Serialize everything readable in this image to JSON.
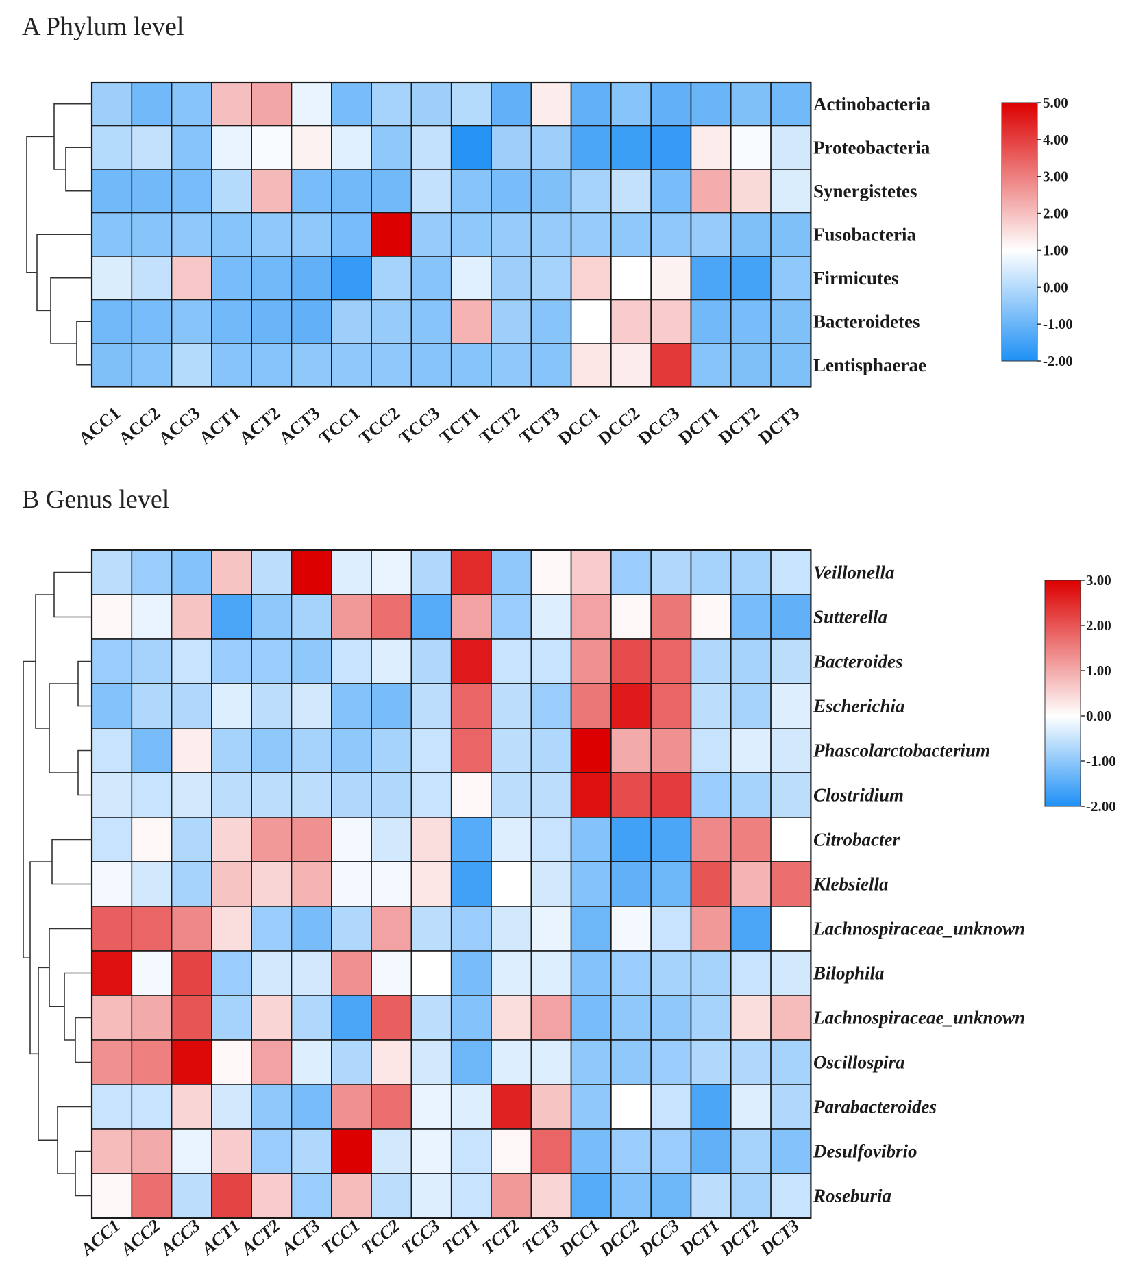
{
  "colors": {
    "low": "#1e90f5",
    "mid": "#ffffff",
    "high": "#dc0000",
    "grid": "#1a1a1a",
    "dendro": "#333333"
  },
  "chart_data": [
    {
      "type": "heatmap",
      "title": "A Phylum level",
      "columns": [
        "ACC1",
        "ACC2",
        "ACC3",
        "ACT1",
        "ACT2",
        "ACT3",
        "TCC1",
        "TCC2",
        "TCC3",
        "TCT1",
        "TCT2",
        "TCT3",
        "DCC1",
        "DCC2",
        "DCC3",
        "DCT1",
        "DCT2",
        "DCT3"
      ],
      "rows": [
        "Actinobacteria",
        "Proteobacteria",
        "Synergistetes",
        "Fusobacteria",
        "Firmicutes",
        "Bacteroidetes",
        "Lentisphaerae"
      ],
      "row_label_style": "normal",
      "col_label_style": "normal",
      "values": [
        [
          -0.3,
          -0.9,
          -0.6,
          2.0,
          2.4,
          0.7,
          -0.8,
          -0.2,
          -0.3,
          0.0,
          -1.1,
          1.3,
          -1.1,
          -0.6,
          -1.1,
          -1.0,
          -0.7,
          -0.9
        ],
        [
          0.0,
          0.2,
          -0.6,
          0.7,
          0.9,
          1.2,
          0.6,
          -0.5,
          0.2,
          -1.9,
          -0.3,
          -0.3,
          -1.4,
          -1.6,
          -1.7,
          1.3,
          0.9,
          0.4
        ],
        [
          -0.9,
          -0.9,
          -0.8,
          0.0,
          2.1,
          -0.8,
          -0.9,
          -0.9,
          0.2,
          -0.6,
          -0.8,
          -0.7,
          -0.2,
          0.2,
          -0.8,
          2.3,
          1.6,
          0.5
        ],
        [
          -0.6,
          -0.6,
          -0.5,
          -0.6,
          -0.5,
          -0.5,
          -0.8,
          5.0,
          -0.4,
          -0.5,
          -0.4,
          -0.4,
          -0.4,
          -0.5,
          -0.5,
          -0.4,
          -0.7,
          -0.7
        ],
        [
          0.5,
          0.2,
          1.9,
          -0.8,
          -0.9,
          -1.1,
          -1.7,
          -0.2,
          -0.6,
          0.6,
          -0.3,
          -0.2,
          1.7,
          1.0,
          1.2,
          -1.4,
          -1.5,
          -0.5
        ],
        [
          -0.9,
          -0.8,
          -0.6,
          -0.9,
          -1.0,
          -1.1,
          -0.3,
          -0.4,
          -0.6,
          2.2,
          -0.3,
          -0.6,
          1.0,
          1.8,
          1.8,
          -0.9,
          -0.8,
          -0.7
        ],
        [
          -0.7,
          -0.6,
          0.0,
          -0.6,
          -0.6,
          -0.5,
          -0.5,
          -0.5,
          -0.6,
          -0.6,
          -0.5,
          -0.6,
          1.4,
          1.3,
          4.1,
          -0.6,
          -0.7,
          -0.7
        ]
      ],
      "colorbar": {
        "min": -2.0,
        "max": 5.0,
        "ticks": [
          "5.00",
          "4.00",
          "3.00",
          "2.00",
          "1.00",
          "0.00",
          "-1.00",
          "-2.00"
        ]
      },
      "dendrogram": "rows"
    },
    {
      "type": "heatmap",
      "title": "B Genus level",
      "columns": [
        "ACC1",
        "ACC2",
        "ACC3",
        "ACT1",
        "ACT2",
        "ACT3",
        "TCC1",
        "TCC2",
        "TCC3",
        "TCT1",
        "TCT2",
        "TCT3",
        "DCC1",
        "DCC2",
        "DCC3",
        "DCT1",
        "DCT2",
        "DCT3"
      ],
      "rows": [
        "Veillonella",
        "Sutterella",
        "Bacteroides",
        "Escherichia",
        "Phascolarctobacterium",
        "Clostridium",
        "Citrobacter",
        "Klebsiella",
        "Lachnospiraceae_unknown",
        "Bilophila",
        "Lachnospiraceae_unknown",
        "Oscillospira",
        "Parabacteroides",
        "Desulfovibrio",
        "Roseburia"
      ],
      "row_label_style": "italic",
      "col_label_style": "italic",
      "values": [
        [
          -0.6,
          -0.9,
          -1.1,
          0.7,
          -0.6,
          3.0,
          -0.3,
          -0.2,
          -0.7,
          2.5,
          -1.0,
          0.1,
          0.6,
          -0.9,
          -0.7,
          -0.8,
          -0.8,
          -0.5
        ],
        [
          0.1,
          -0.2,
          0.7,
          -1.6,
          -1.0,
          -0.8,
          1.2,
          1.7,
          -1.5,
          1.1,
          -0.9,
          -0.3,
          1.1,
          0.1,
          1.6,
          0.1,
          -1.2,
          -1.4
        ],
        [
          -0.9,
          -0.8,
          -0.5,
          -0.9,
          -0.9,
          -1.0,
          -0.5,
          -0.3,
          -0.7,
          2.7,
          -0.5,
          -0.5,
          1.3,
          2.1,
          1.8,
          -0.7,
          -0.8,
          -0.6
        ],
        [
          -1.1,
          -0.7,
          -0.7,
          -0.3,
          -0.6,
          -0.4,
          -1.1,
          -1.2,
          -0.6,
          1.8,
          -0.6,
          -0.9,
          1.6,
          2.7,
          1.8,
          -0.6,
          -0.8,
          -0.3
        ],
        [
          -0.5,
          -1.2,
          0.2,
          -0.8,
          -1.0,
          -0.8,
          -1.0,
          -0.8,
          -0.5,
          1.8,
          -0.6,
          -0.7,
          3.0,
          1.0,
          1.3,
          -0.5,
          -0.3,
          -0.4
        ],
        [
          -0.4,
          -0.5,
          -0.4,
          -0.6,
          -0.6,
          -0.6,
          -0.7,
          -0.7,
          -0.5,
          0.1,
          -0.6,
          -0.6,
          2.8,
          2.1,
          2.3,
          -0.9,
          -0.8,
          -0.6
        ],
        [
          -0.5,
          0.1,
          -0.7,
          0.5,
          1.2,
          1.3,
          -0.1,
          -0.4,
          0.4,
          -1.5,
          -0.3,
          -0.5,
          -1.1,
          -1.7,
          -1.6,
          1.4,
          1.5,
          0.0
        ],
        [
          -0.1,
          -0.4,
          -0.8,
          0.7,
          0.5,
          0.9,
          -0.1,
          -0.1,
          0.3,
          -1.7,
          0.0,
          -0.4,
          -1.1,
          -1.4,
          -1.3,
          2.0,
          0.9,
          1.7
        ],
        [
          1.9,
          1.8,
          1.4,
          0.4,
          -0.9,
          -1.2,
          -0.7,
          1.1,
          -0.6,
          -0.9,
          -0.4,
          -0.2,
          -1.3,
          -0.1,
          -0.5,
          1.2,
          -1.6,
          0.0
        ],
        [
          2.8,
          -0.1,
          2.2,
          -0.9,
          -0.4,
          -0.4,
          1.3,
          -0.1,
          0.0,
          -1.2,
          -0.3,
          -0.3,
          -1.1,
          -0.9,
          -0.8,
          -0.8,
          -0.5,
          -0.4
        ],
        [
          0.8,
          1.0,
          2.0,
          -0.8,
          0.5,
          -0.7,
          -1.6,
          1.9,
          -0.6,
          -1.1,
          0.4,
          1.1,
          -1.2,
          -1.0,
          -1.0,
          -0.8,
          0.4,
          0.8
        ],
        [
          1.3,
          1.5,
          2.9,
          0.1,
          1.1,
          -0.3,
          -0.7,
          0.3,
          -0.4,
          -1.3,
          -0.3,
          -0.3,
          -1.0,
          -1.0,
          -0.9,
          -0.7,
          -0.7,
          -0.8
        ],
        [
          -0.5,
          -0.5,
          0.5,
          -0.4,
          -1.0,
          -1.2,
          1.3,
          1.7,
          -0.2,
          -0.3,
          2.6,
          0.7,
          -1.0,
          0.0,
          -0.5,
          -1.6,
          -0.3,
          -0.7
        ],
        [
          0.8,
          1.0,
          -0.2,
          0.6,
          -0.9,
          -0.7,
          3.0,
          -0.4,
          -0.2,
          -0.5,
          0.1,
          1.8,
          -1.2,
          -0.9,
          -0.9,
          -1.4,
          -0.8,
          -1.1
        ],
        [
          0.1,
          1.7,
          -0.6,
          2.2,
          0.6,
          -0.9,
          0.8,
          -0.6,
          -0.3,
          -0.5,
          1.2,
          0.5,
          -1.5,
          -1.1,
          -1.3,
          -0.6,
          -0.8,
          -0.5
        ]
      ],
      "colorbar": {
        "min": -2.0,
        "max": 3.0,
        "ticks": [
          "3.00",
          "2.00",
          "1.00",
          "0.00",
          "-1.00",
          "-2.00"
        ]
      },
      "dendrogram": "rows"
    }
  ]
}
